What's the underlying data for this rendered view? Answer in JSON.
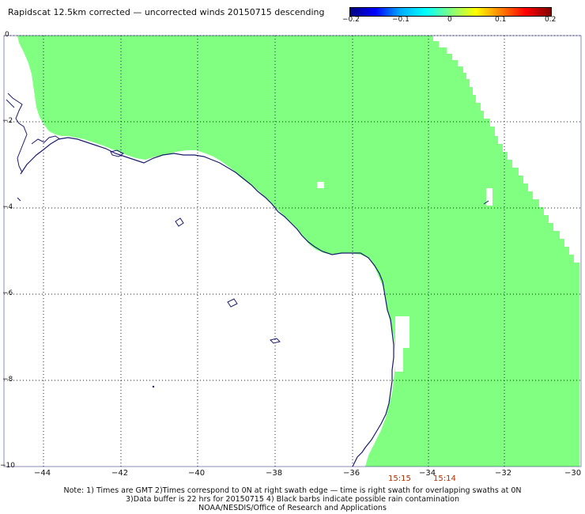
{
  "title": "Rapidscat 12.5km corrected — uncorrected winds 20150715 descending",
  "colorbar": {
    "ticks": [
      "−0.2",
      "−0.1",
      "0",
      "0.1",
      "0.2"
    ],
    "colors": [
      "#00007f",
      "#0000ff",
      "#00aaff",
      "#00ffff",
      "#80ff80",
      "#ffff00",
      "#ff8000",
      "#ff0000",
      "#800000"
    ]
  },
  "map": {
    "ocean_color": "#80ff80",
    "coast_color": "#1a1a6e",
    "grid_color": "#1a1a6e",
    "lat_labels": [
      "0",
      "−2",
      "−4",
      "−6",
      "−8",
      "−10"
    ],
    "lon_labels": [
      "−44",
      "−42",
      "−40",
      "−38",
      "−36",
      "−34",
      "−32",
      "−30"
    ]
  },
  "times": [
    "15:15",
    "15:14"
  ],
  "notes": [
    "Note: 1) Times are GMT 2)Times correspond to 0N at right swath edge — time is right swath for overlapping swaths at 0N",
    "3)Data buffer is 22 hrs for 20150715 4) Black barbs indicate possible rain contamination",
    "NOAA/NESDIS/Office of Research and Applications"
  ]
}
